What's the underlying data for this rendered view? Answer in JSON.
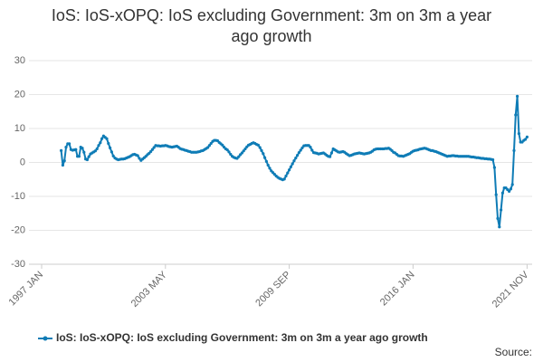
{
  "chart_data": {
    "type": "line",
    "title": "IoS: IoS-xOPQ: IoS excluding Government: 3m on 3m a year ago growth",
    "source": "Source:",
    "categories": [
      "1997 JAN",
      null,
      null,
      null,
      null,
      null,
      null,
      null,
      null,
      null,
      null,
      null,
      null,
      null,
      null,
      null,
      null,
      null,
      null,
      null,
      null,
      null,
      null,
      null,
      null,
      null,
      null,
      null,
      null,
      null,
      null,
      null,
      null,
      null,
      null,
      null,
      null,
      null,
      null,
      null,
      null,
      null,
      null,
      null,
      null,
      null,
      null,
      null,
      null,
      null,
      null,
      null,
      null,
      null,
      null,
      null,
      null,
      null,
      null,
      null,
      null,
      null,
      null,
      null,
      null,
      null,
      null,
      null,
      null,
      null,
      null,
      null,
      null,
      null,
      null,
      null,
      "2003 MAY",
      null,
      null,
      null,
      null,
      null,
      null,
      null,
      null,
      null,
      null,
      null,
      null,
      null,
      null,
      null,
      null,
      null,
      null,
      null,
      null,
      null,
      null,
      null,
      null,
      null,
      null,
      null,
      null,
      null,
      null,
      null,
      null,
      null,
      null,
      null,
      null,
      null,
      null,
      null,
      null,
      null,
      null,
      null,
      null,
      null,
      null,
      null,
      null,
      null,
      null,
      null,
      null,
      null,
      null,
      null,
      null,
      null,
      null,
      null,
      null,
      null,
      null,
      null,
      null,
      null,
      null,
      null,
      null,
      null,
      null,
      null,
      null,
      null,
      null,
      null,
      "2009 SEP",
      null,
      null,
      null,
      null,
      null,
      null,
      null,
      null,
      null,
      null,
      null,
      null,
      null,
      null,
      null,
      null,
      null,
      null,
      null,
      null,
      null,
      null,
      null,
      null,
      null,
      null,
      null,
      null,
      null,
      null,
      null,
      null,
      null,
      null,
      null,
      null,
      null,
      null,
      null,
      null,
      null,
      null,
      null,
      null,
      null,
      null,
      null,
      null,
      null,
      null,
      null,
      null,
      null,
      null,
      null,
      null,
      null,
      null,
      null,
      null,
      null,
      null,
      null,
      null,
      null,
      null,
      null,
      null,
      null,
      null,
      null,
      null,
      null,
      null,
      null,
      "2016 JAN",
      null,
      null,
      null,
      null,
      null,
      null,
      null,
      null,
      null,
      null,
      null,
      null,
      null,
      null,
      null,
      null,
      null,
      null,
      null,
      null,
      null,
      null,
      null,
      null,
      null,
      null,
      null,
      null,
      null,
      null,
      null,
      null,
      null,
      null,
      null,
      null,
      null,
      null,
      null,
      null,
      null,
      null,
      null,
      null,
      null,
      null,
      null,
      null,
      null,
      null,
      null,
      null,
      null,
      null,
      null,
      null,
      null,
      null,
      null,
      null,
      null,
      null,
      null,
      null,
      null,
      null,
      null,
      null,
      null,
      "2021 NOV"
    ],
    "series": [
      {
        "name": "IoS: IoS-xOPQ: IoS excluding Government: 3m on 3m a year ago growth",
        "color": "#0f7cb6",
        "values": [
          null,
          null,
          null,
          null,
          null,
          null,
          null,
          null,
          null,
          null,
          null,
          null,
          3.5,
          -0.8,
          0.5,
          4.5,
          5.5,
          5.5,
          3.8,
          3.6,
          3.7,
          3.8,
          1.8,
          1.8,
          4.5,
          4.2,
          3.0,
          1.0,
          0.8,
          1.7,
          2.5,
          2.8,
          3.1,
          3.4,
          4.0,
          5.0,
          5.8,
          7.0,
          7.8,
          7.4,
          7.0,
          5.6,
          4.3,
          3.1,
          1.9,
          1.3,
          1.0,
          0.8,
          0.9,
          1.0,
          1.0,
          1.1,
          1.3,
          1.5,
          1.7,
          2.0,
          2.3,
          2.4,
          2.2,
          2.0,
          1.2,
          0.6,
          1.0,
          1.4,
          1.8,
          2.3,
          2.7,
          3.2,
          3.8,
          4.4,
          5.0,
          4.9,
          4.9,
          4.8,
          4.9,
          4.9,
          5.0,
          4.9,
          4.7,
          4.6,
          4.5,
          4.6,
          4.7,
          4.8,
          4.5,
          4.1,
          3.9,
          3.8,
          3.6,
          3.5,
          3.3,
          3.2,
          3.0,
          3.0,
          3.0,
          3.0,
          3.1,
          3.2,
          3.4,
          3.5,
          3.8,
          4.1,
          4.4,
          5.0,
          5.6,
          6.2,
          6.5,
          6.5,
          6.4,
          5.9,
          5.5,
          5.1,
          4.5,
          4.0,
          3.7,
          3.1,
          2.4,
          1.8,
          1.5,
          1.3,
          1.2,
          1.7,
          2.3,
          2.8,
          3.4,
          4.0,
          4.6,
          5.1,
          5.3,
          5.6,
          5.8,
          5.6,
          5.3,
          5.1,
          4.4,
          3.5,
          2.6,
          1.4,
          0.3,
          -0.8,
          -1.7,
          -2.5,
          -3.0,
          -3.5,
          -4.0,
          -4.4,
          -4.7,
          -4.9,
          -5.1,
          -4.9,
          -4.0,
          -3.1,
          -2.2,
          -1.3,
          -0.4,
          0.5,
          1.3,
          2.1,
          2.9,
          3.6,
          4.3,
          4.9,
          5.0,
          5.0,
          5.0,
          4.5,
          3.6,
          2.9,
          2.8,
          2.7,
          2.5,
          2.6,
          2.7,
          2.8,
          2.5,
          2.1,
          1.8,
          1.7,
          2.8,
          4.0,
          3.7,
          3.4,
          3.1,
          3.0,
          3.1,
          3.2,
          3.0,
          2.6,
          2.3,
          2.0,
          2.1,
          2.3,
          2.5,
          2.6,
          2.7,
          2.8,
          2.7,
          2.6,
          2.5,
          2.6,
          2.7,
          2.8,
          3.0,
          3.3,
          3.7,
          3.9,
          4.0,
          4.0,
          4.0,
          4.0,
          4.0,
          4.1,
          4.1,
          4.2,
          3.9,
          3.5,
          3.0,
          2.8,
          2.4,
          2.0,
          1.9,
          1.9,
          1.8,
          2.0,
          2.2,
          2.4,
          2.6,
          3.0,
          3.3,
          3.5,
          3.6,
          3.7,
          3.9,
          4.0,
          4.1,
          4.2,
          4.1,
          3.9,
          3.7,
          3.5,
          3.5,
          3.3,
          3.2,
          3.0,
          2.8,
          2.6,
          2.4,
          2.2,
          2.0,
          1.8,
          1.9,
          1.9,
          2.0,
          2.0,
          1.9,
          1.9,
          1.8,
          1.8,
          1.8,
          1.8,
          1.8,
          1.8,
          1.8,
          1.7,
          1.6,
          1.6,
          1.5,
          1.4,
          1.4,
          1.3,
          1.2,
          1.2,
          1.1,
          1.1,
          1.0,
          1.0,
          0.9,
          0.8,
          -1.5,
          -9.5,
          -16.5,
          -19.0,
          -14.0,
          -9.0,
          -7.5,
          -7.5,
          -8.0,
          -8.5,
          -7.8,
          -6.5,
          3.5,
          14.0,
          19.5,
          8.5,
          6.0,
          6.0,
          6.5,
          6.8,
          7.5
        ]
      }
    ],
    "ylim": [
      -30,
      30
    ],
    "yticks": [
      -30,
      -20,
      -10,
      0,
      10,
      20,
      30
    ],
    "grid": true
  }
}
